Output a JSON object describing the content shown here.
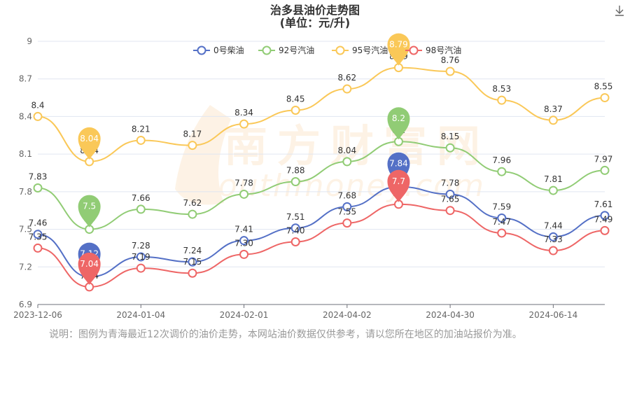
{
  "title": "治多县油价走势图",
  "subtitle": "(单位：元/升)",
  "note": "说明：图例为青海最近12次调价的油价走势，本网站油价数据仅供参考，请以您所在地区的加油站报价为准。",
  "watermark": "南方财富网",
  "watermark_sub": "southmoney.com",
  "download_icon": "download-icon",
  "chart_data": {
    "type": "line",
    "smooth": true,
    "xlabels": [
      "2023-12-06",
      "2024-01-04",
      "2024-02-01",
      "2024-04-02",
      "2024-04-30",
      "2024-06-14"
    ],
    "ylim": [
      6.9,
      9
    ],
    "yticks": [
      "6.9",
      "7.2",
      "7.5",
      "7.8",
      "8.1",
      "8.4",
      "8.7",
      "9"
    ],
    "grid": true,
    "legend_position": "top-center",
    "series": [
      {
        "name": "0号柴油",
        "color": "#5470c6",
        "values": [
          7.46,
          7.12,
          7.28,
          7.24,
          7.41,
          7.51,
          7.68,
          7.84,
          7.78,
          7.59,
          7.44,
          7.61
        ],
        "labels": [
          "7.46",
          "7.12",
          "7.28",
          "7.24",
          "7.41",
          "7.51",
          "7.68",
          "7.84",
          "7.78",
          "7.59",
          "7.44",
          "7.61"
        ],
        "max_marker": "7.84",
        "min_marker": "7.12"
      },
      {
        "name": "92号汽油",
        "color": "#91cc75",
        "values": [
          7.83,
          7.5,
          7.66,
          7.62,
          7.78,
          7.88,
          8.04,
          8.2,
          8.15,
          7.96,
          7.81,
          7.97
        ],
        "labels": [
          "7.83",
          "7.5",
          "7.66",
          "7.62",
          "7.78",
          "7.88",
          "8.04",
          "8.2",
          "8.15",
          "7.96",
          "7.81",
          "7.97"
        ],
        "max_marker": "8.2",
        "min_marker": "7.5"
      },
      {
        "name": "95号汽油",
        "color": "#fac858",
        "values": [
          8.4,
          8.04,
          8.21,
          8.17,
          8.34,
          8.45,
          8.62,
          8.79,
          8.76,
          8.53,
          8.37,
          8.55
        ],
        "labels": [
          "8.4",
          "8.04",
          "8.21",
          "8.17",
          "8.34",
          "8.45",
          "8.62",
          "8.79",
          "8.76",
          "8.53",
          "8.37",
          "8.55"
        ],
        "max_marker": "8.79",
        "min_marker": "8.04"
      },
      {
        "name": "98号汽油",
        "color": "#ee6666",
        "values": [
          7.35,
          7.04,
          7.19,
          7.15,
          7.3,
          7.4,
          7.55,
          7.7,
          7.65,
          7.47,
          7.33,
          7.49
        ],
        "labels": [
          "7.35",
          "7.04",
          "7.19",
          "7.15",
          "7.30",
          "7.40",
          "7.55",
          "7.7",
          "7.65",
          "7.47",
          "7.33",
          "7.49"
        ],
        "max_marker": "7.7",
        "min_marker": "7.04"
      }
    ]
  }
}
